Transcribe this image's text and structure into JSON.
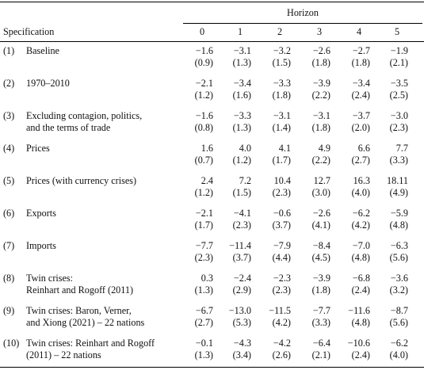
{
  "header": {
    "horizon_title": "Horizon",
    "spec_label": "Specification",
    "horizons": [
      "0",
      "1",
      "2",
      "3",
      "4",
      "5"
    ]
  },
  "rows": [
    {
      "num": "(1)",
      "label": [
        "Baseline"
      ],
      "est": [
        "−1.6",
        "−3.1",
        "−3.2",
        "−2.6",
        "−2.7",
        "−1.9"
      ],
      "se": [
        "(0.9)",
        "(1.3)",
        "(1.5)",
        "(1.8)",
        "(1.8)",
        "(2.1)"
      ]
    },
    {
      "num": "(2)",
      "label": [
        "1970–2010"
      ],
      "est": [
        "−2.1",
        "−3.4",
        "−3.3",
        "−3.9",
        "−3.4",
        "−3.5"
      ],
      "se": [
        "(1.2)",
        "(1.6)",
        "(1.8)",
        "(2.2)",
        "(2.4)",
        "(2.5)"
      ]
    },
    {
      "num": "(3)",
      "label": [
        "Excluding contagion, politics,",
        "and the terms of trade"
      ],
      "est": [
        "−1.6",
        "−3.3",
        "−3.1",
        "−3.1",
        "−3.7",
        "−3.0"
      ],
      "se": [
        "(0.8)",
        "(1.3)",
        "(1.4)",
        "(1.8)",
        "(2.0)",
        "(2.3)"
      ]
    },
    {
      "num": "(4)",
      "label": [
        "Prices"
      ],
      "est": [
        "1.6",
        "4.0",
        "4.1",
        "4.9",
        "6.6",
        "7.7"
      ],
      "se": [
        "(0.7)",
        "(1.2)",
        "(1.7)",
        "(2.2)",
        "(2.7)",
        "(3.3)"
      ]
    },
    {
      "num": "(5)",
      "label": [
        "Prices (with currency crises)"
      ],
      "est": [
        "2.4",
        "7.2",
        "10.4",
        "12.7",
        "16.3",
        "18.11"
      ],
      "se": [
        "(1.2)",
        "(1.5)",
        "(2.3)",
        "(3.0)",
        "(4.0)",
        "(4.9)"
      ]
    },
    {
      "num": "(6)",
      "label": [
        "Exports"
      ],
      "est": [
        "−2.1",
        "−4.1",
        "−0.6",
        "−2.6",
        "−6.2",
        "−5.9"
      ],
      "se": [
        "(1.7)",
        "(2.3)",
        "(3.7)",
        "(4.1)",
        "(4.2)",
        "(4.8)"
      ]
    },
    {
      "num": "(7)",
      "label": [
        "Imports"
      ],
      "est": [
        "−7.7",
        "−11.4",
        "−7.9",
        "−8.4",
        "−7.0",
        "−6.3"
      ],
      "se": [
        "(2.3)",
        "(3.7)",
        "(4.4)",
        "(4.5)",
        "(4.8)",
        "(5.6)"
      ]
    },
    {
      "num": "(8)",
      "label": [
        "Twin crises:",
        "Reinhart and Rogoff (2011)"
      ],
      "est": [
        "0.3",
        "−2.4",
        "−2.3",
        "−3.9",
        "−6.8",
        "−3.6"
      ],
      "se": [
        "(1.3)",
        "(2.9)",
        "(2.3)",
        "(1.8)",
        "(2.4)",
        "(3.2)"
      ]
    },
    {
      "num": "(9)",
      "label": [
        "Twin crises: Baron, Verner,",
        "and Xiong (2021) – 22 nations"
      ],
      "est": [
        "−6.7",
        "−13.0",
        "−11.5",
        "−7.7",
        "−11.6",
        "−8.7"
      ],
      "se": [
        "(2.7)",
        "(5.3)",
        "(4.2)",
        "(3.3)",
        "(4.8)",
        "(5.6)"
      ]
    },
    {
      "num": "(10)",
      "label": [
        "Twin crises: Reinhart and Rogoff",
        "(2011) – 22 nations"
      ],
      "est": [
        "−0.1",
        "−4.3",
        "−4.2",
        "−6.4",
        "−10.6",
        "−6.2"
      ],
      "se": [
        "(1.3)",
        "(3.4)",
        "(2.6)",
        "(2.1)",
        "(2.4)",
        "(4.0)"
      ]
    }
  ]
}
